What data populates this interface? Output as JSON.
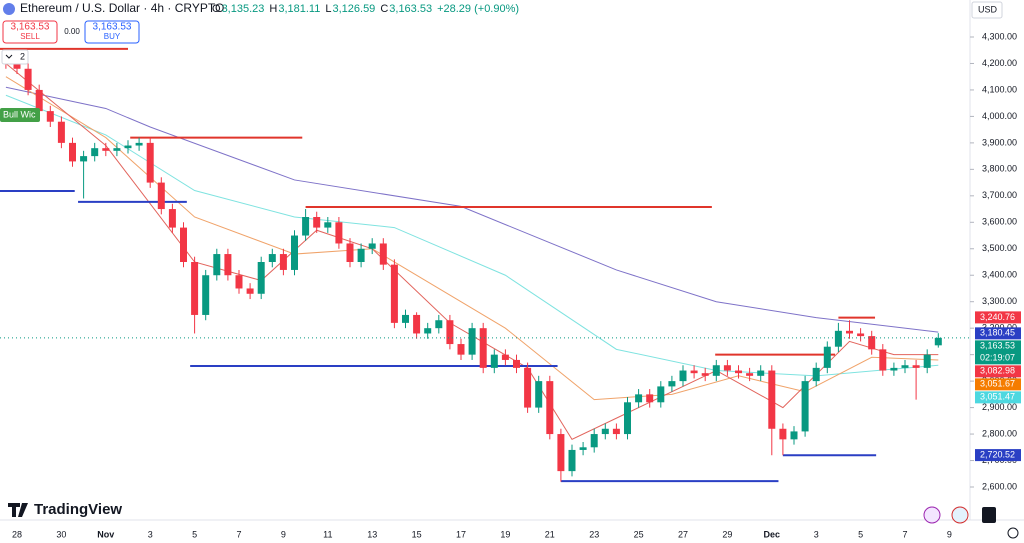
{
  "ui": {
    "sell_price": "3,163.53",
    "sell_label": "SELL",
    "spread": "0.00",
    "buy_price": "3,163.53",
    "buy_label": "BUY",
    "indicator_count": "2",
    "indicator_tag": "Bull Wic",
    "currency": "USD",
    "brand": "TradingView"
  },
  "chart_data": {
    "type": "candlestick",
    "title": "Ethereum / U.S. Dollar · 4h · CRYPTO",
    "ohlc_header": [
      {
        "key": "O",
        "value": "3,135.23"
      },
      {
        "key": "H",
        "value": "3,181.11"
      },
      {
        "key": "L",
        "value": "3,126.59"
      },
      {
        "key": "C",
        "value": "3,163.53"
      }
    ],
    "change": "+28.29 (+0.90%)",
    "categories": [
      null,
      "28",
      null,
      null,
      null,
      "30",
      null,
      null,
      null,
      "Nov",
      null,
      null,
      null,
      "3",
      null,
      null,
      null,
      "5",
      null,
      null,
      null,
      "7",
      null,
      null,
      null,
      "9",
      null,
      null,
      null,
      "11",
      null,
      null,
      null,
      "13",
      null,
      null,
      null,
      "15",
      null,
      null,
      null,
      "17",
      null,
      null,
      null,
      "19",
      null,
      null,
      null,
      "21",
      null,
      null,
      null,
      "23",
      null,
      null,
      null,
      "25",
      null,
      null,
      null,
      "27",
      null,
      null,
      null,
      "29",
      null,
      null,
      null,
      "Dec",
      null,
      null,
      null,
      "3",
      null,
      null,
      null,
      "5",
      null,
      null,
      null,
      "7",
      null,
      null,
      null,
      "9"
    ],
    "open": [
      4230,
      4200,
      4180,
      4100,
      4020,
      3980,
      3900,
      3830,
      3850,
      3880,
      3870,
      3880,
      3890,
      3900,
      3750,
      3650,
      3580,
      3450,
      3250,
      3400,
      3480,
      3400,
      3350,
      3330,
      3450,
      3480,
      3420,
      3550,
      3620,
      3580,
      3600,
      3520,
      3450,
      3500,
      3520,
      3440,
      3220,
      3250,
      3180,
      3200,
      3230,
      3140,
      3100,
      3200,
      3050,
      3100,
      3080,
      3050,
      2900,
      3000,
      2800,
      2660,
      2740,
      2750,
      2800,
      2820,
      2800,
      2920,
      2950,
      2920,
      2980,
      3000,
      3040,
      3030,
      3020,
      3060,
      3040,
      3030,
      3020,
      3040,
      2820,
      2780,
      2810,
      3000,
      3050,
      3130,
      3190,
      3180,
      3170,
      3120,
      3040,
      3050,
      3060,
      3050,
      3135.23,
      null
    ],
    "high": [
      4250,
      4220,
      4200,
      4120,
      4040,
      4000,
      3920,
      3870,
      3900,
      3900,
      3900,
      3910,
      3920,
      3920,
      3770,
      3670,
      3600,
      3470,
      3420,
      3500,
      3500,
      3420,
      3370,
      3470,
      3500,
      3500,
      3570,
      3650,
      3640,
      3620,
      3620,
      3540,
      3520,
      3540,
      3540,
      3460,
      3270,
      3260,
      3220,
      3250,
      3250,
      3160,
      3220,
      3220,
      3120,
      3120,
      3100,
      3070,
      3020,
      3020,
      2820,
      2760,
      2770,
      2820,
      2840,
      2840,
      2940,
      2970,
      2970,
      3000,
      3020,
      3060,
      3060,
      3050,
      3080,
      3080,
      3060,
      3050,
      3060,
      3060,
      2840,
      2830,
      3020,
      3070,
      3150,
      3220,
      3230,
      3200,
      3190,
      3140,
      3070,
      3080,
      3080,
      3120,
      3181.11,
      null
    ],
    "low": [
      4180,
      4160,
      4080,
      4000,
      3960,
      3880,
      3810,
      3690,
      3830,
      3850,
      3850,
      3860,
      3870,
      3730,
      3630,
      3560,
      3430,
      3180,
      3230,
      3380,
      3380,
      3330,
      3310,
      3310,
      3430,
      3400,
      3400,
      3530,
      3560,
      3560,
      3500,
      3430,
      3430,
      3480,
      3420,
      3200,
      3200,
      3160,
      3160,
      3180,
      3120,
      3080,
      3080,
      3030,
      3030,
      3060,
      3030,
      2880,
      2880,
      2780,
      2620,
      2640,
      2720,
      2730,
      2780,
      2780,
      2780,
      2900,
      2900,
      2900,
      2960,
      2980,
      3010,
      3000,
      3000,
      3020,
      3010,
      3000,
      3000,
      2720,
      2720,
      2760,
      2790,
      2980,
      3030,
      3110,
      3160,
      3150,
      3100,
      3020,
      3020,
      3030,
      2930,
      3030,
      3126.59,
      null
    ],
    "close": [
      4200,
      4180,
      4100,
      4020,
      3980,
      3900,
      3830,
      3850,
      3880,
      3870,
      3880,
      3890,
      3900,
      3750,
      3650,
      3580,
      3450,
      3250,
      3400,
      3480,
      3400,
      3350,
      3330,
      3450,
      3480,
      3420,
      3550,
      3620,
      3580,
      3600,
      3520,
      3450,
      3500,
      3520,
      3440,
      3220,
      3250,
      3180,
      3200,
      3230,
      3140,
      3100,
      3200,
      3050,
      3100,
      3080,
      3050,
      2900,
      3000,
      2800,
      2660,
      2740,
      2750,
      2800,
      2820,
      2800,
      2920,
      2950,
      2920,
      2980,
      3000,
      3040,
      3030,
      3020,
      3060,
      3040,
      3030,
      3020,
      3040,
      2820,
      2780,
      2810,
      3000,
      3050,
      3130,
      3190,
      3180,
      3170,
      3120,
      3040,
      3050,
      3060,
      3050,
      3100,
      3163.53,
      null
    ],
    "up_color": "#089981",
    "down_color": "#f23645",
    "moving_averages": [
      {
        "color": "#7e72c8",
        "x": [
          0,
          9,
          13,
          26,
          41,
          55,
          64,
          73,
          84
        ],
        "values": [
          4110,
          4030,
          3960,
          3760,
          3660,
          3420,
          3300,
          3240,
          3185
        ]
      },
      {
        "color": "#7fe3e0",
        "x": [
          0,
          9,
          17,
          26,
          35,
          45,
          55,
          64,
          73,
          84
        ],
        "values": [
          4080,
          3930,
          3720,
          3620,
          3580,
          3400,
          3120,
          3040,
          3020,
          3060
        ]
      },
      {
        "color": "#f0a36a",
        "x": [
          0,
          9,
          17,
          26,
          33,
          45,
          53,
          60,
          66,
          72,
          78,
          84
        ],
        "values": [
          4150,
          3920,
          3620,
          3480,
          3500,
          3200,
          2930,
          2950,
          3020,
          2960,
          3090,
          3080
        ]
      },
      {
        "color": "#e2645c",
        "x": [
          0,
          9,
          17,
          23,
          28,
          33,
          40,
          47,
          51,
          56,
          64,
          70,
          76,
          80,
          84
        ],
        "values": [
          4200,
          3890,
          3450,
          3380,
          3570,
          3500,
          3220,
          3050,
          2780,
          2880,
          3040,
          2900,
          3150,
          3100,
          3100
        ]
      }
    ],
    "levels": [
      {
        "value": 4255,
        "from": -1,
        "to": 11,
        "color": "#e0352b"
      },
      {
        "value": 3920,
        "from": 11.2,
        "to": 26.7,
        "color": "#e0352b"
      },
      {
        "value": 3658,
        "from": 27,
        "to": 63.6,
        "color": "#e0352b"
      },
      {
        "value": 3100,
        "from": 63.9,
        "to": 74.7,
        "color": "#e0352b"
      },
      {
        "value": 3240,
        "from": 75,
        "to": 78.3,
        "color": "#e0352b"
      },
      {
        "value": 3718,
        "from": -1,
        "to": 6.2,
        "color": "#2a3fc4"
      },
      {
        "value": 3677,
        "from": 6.5,
        "to": 16.3,
        "color": "#2a3fc4"
      },
      {
        "value": 3057,
        "from": 16.6,
        "to": 49.7,
        "color": "#2a3fc4"
      },
      {
        "value": 2622,
        "from": 50,
        "to": 69.6,
        "color": "#2a3fc4"
      },
      {
        "value": 2720,
        "from": 70,
        "to": 78.4,
        "color": "#2a3fc4"
      }
    ],
    "price_labels": [
      {
        "value": 3240.76,
        "label": "3,240.76",
        "color": "#f23645"
      },
      {
        "value": 3180.45,
        "label": "3,180.45",
        "color": "#2a3fc4"
      },
      {
        "value": 3163.53,
        "label": "3,163.53",
        "countdown": "02:19:07",
        "color": "#089981",
        "current": true
      },
      {
        "value": 3082.98,
        "label": "3,082.98",
        "color": "#f23645"
      },
      {
        "value": 3051.67,
        "label": "3,051.67",
        "color": "#f57c00"
      },
      {
        "value": 3051.47,
        "label": "3,051.47",
        "color": "#4dd8e0"
      },
      {
        "value": 2720.52,
        "label": "2,720.52",
        "color": "#2a3fc4"
      }
    ],
    "ylim": [
      2600,
      4300
    ],
    "yticks": [
      {
        "value": 2600,
        "label": "2,600.00"
      },
      {
        "value": 2700,
        "label": "2,700.00"
      },
      {
        "value": 2800,
        "label": "2,800.00"
      },
      {
        "value": 2900,
        "label": "2,900.00"
      },
      {
        "value": 3000,
        "label": "3,000.00"
      },
      {
        "value": 3100,
        "label": "3,100.00"
      },
      {
        "value": 3200,
        "label": "3,200.00"
      },
      {
        "value": 3300,
        "label": "3,300.00"
      },
      {
        "value": 3400,
        "label": "3,400.00"
      },
      {
        "value": 3500,
        "label": "3,500.00"
      },
      {
        "value": 3600,
        "label": "3,600.00"
      },
      {
        "value": 3700,
        "label": "3,700.00"
      },
      {
        "value": 3800,
        "label": "3,800.00"
      },
      {
        "value": 3900,
        "label": "3,900.00"
      },
      {
        "value": 4000,
        "label": "4,000.00"
      },
      {
        "value": 4100,
        "label": "4,100.00"
      },
      {
        "value": 4200,
        "label": "4,200.00"
      },
      {
        "value": 4300,
        "label": "4,300.00"
      }
    ],
    "grid": false
  }
}
